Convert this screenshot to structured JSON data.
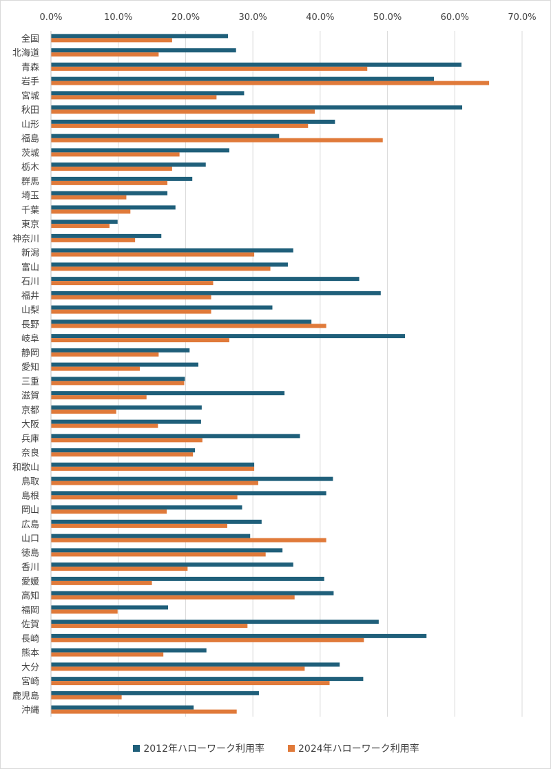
{
  "chart_data": {
    "type": "bar",
    "orientation": "horizontal",
    "title": "",
    "xlabel": "",
    "ylabel": "",
    "xlim": [
      0,
      70
    ],
    "x_ticks": [
      "0.0%",
      "10.0%",
      "20.0%",
      "30.0%",
      "40.0%",
      "50.0%",
      "60.0%",
      "70.0%"
    ],
    "x_tick_values": [
      0,
      10,
      20,
      30,
      40,
      50,
      60,
      70
    ],
    "x_axis_position": "top",
    "grid": true,
    "legend_position": "bottom",
    "categories": [
      "全国",
      "北海道",
      "青森",
      "岩手",
      "宮城",
      "秋田",
      "山形",
      "福島",
      "茨城",
      "栃木",
      "群馬",
      "埼玉",
      "千葉",
      "東京",
      "神奈川",
      "新潟",
      "富山",
      "石川",
      "福井",
      "山梨",
      "長野",
      "岐阜",
      "静岡",
      "愛知",
      "三重",
      "滋賀",
      "京都",
      "大阪",
      "兵庫",
      "奈良",
      "和歌山",
      "鳥取",
      "島根",
      "岡山",
      "広島",
      "山口",
      "徳島",
      "香川",
      "愛媛",
      "高知",
      "福岡",
      "佐賀",
      "長崎",
      "熊本",
      "大分",
      "宮崎",
      "鹿児島",
      "沖縄"
    ],
    "series": [
      {
        "name": "2012年ハローワーク利用率",
        "color": "#1f5f7a",
        "values": [
          26.3,
          27.5,
          61.0,
          56.9,
          28.7,
          61.1,
          42.2,
          33.9,
          26.5,
          23.0,
          21.0,
          17.3,
          18.5,
          9.9,
          16.4,
          36.0,
          35.2,
          45.8,
          49.0,
          32.9,
          38.7,
          52.6,
          20.6,
          21.9,
          19.9,
          34.7,
          22.4,
          22.3,
          37.0,
          21.4,
          30.2,
          41.9,
          40.9,
          28.4,
          31.3,
          29.6,
          34.4,
          36.0,
          40.6,
          42.0,
          17.4,
          48.7,
          55.8,
          23.1,
          42.9,
          46.4,
          30.9,
          21.2
        ]
      },
      {
        "name": "2024年ハローワーク利用率",
        "color": "#e07a3a",
        "values": [
          18.0,
          16.0,
          47.0,
          65.1,
          24.6,
          39.2,
          38.2,
          49.3,
          19.1,
          18.0,
          17.3,
          11.2,
          11.8,
          8.7,
          12.5,
          30.2,
          32.6,
          24.1,
          23.8,
          23.8,
          40.9,
          26.5,
          16.0,
          13.2,
          19.8,
          14.2,
          9.7,
          15.9,
          22.5,
          21.1,
          30.2,
          30.8,
          27.7,
          17.2,
          26.2,
          40.9,
          31.9,
          20.3,
          15.0,
          36.2,
          9.9,
          29.2,
          46.5,
          16.7,
          37.7,
          41.4,
          10.5,
          27.6
        ]
      }
    ]
  }
}
